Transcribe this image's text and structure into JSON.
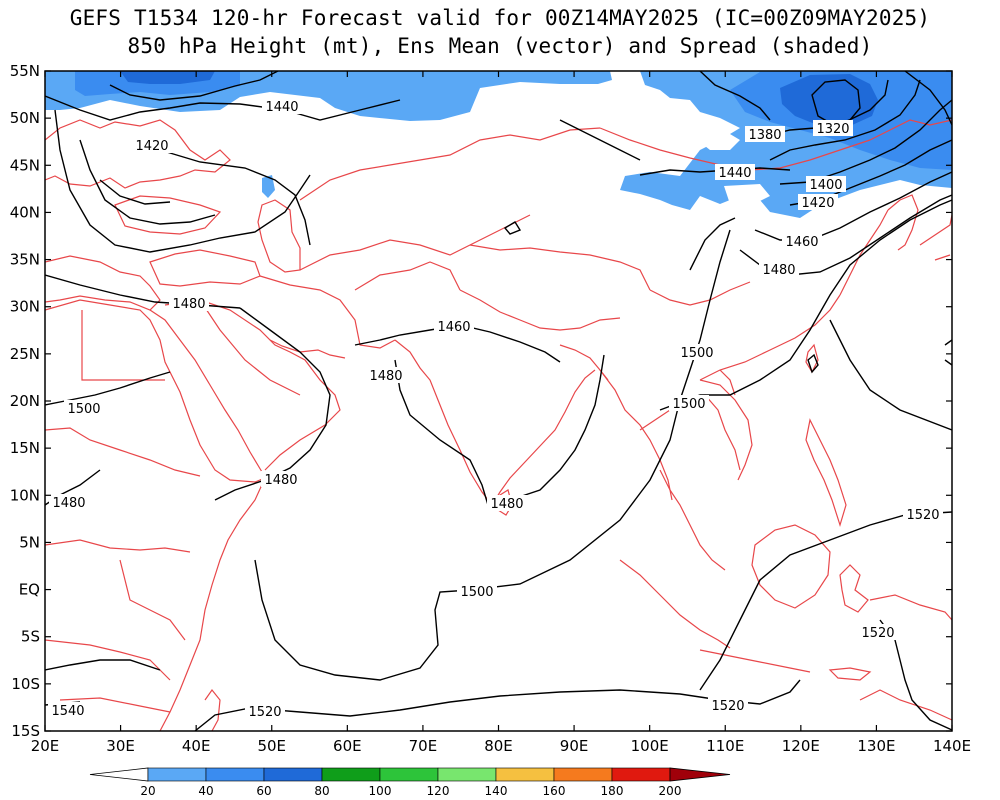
{
  "title": {
    "line1": "GEFS T1534 120-hr Forecast valid for 00Z14MAY2025 (IC=00Z09MAY2025)",
    "line2": "850 hPa Height (mt), Ens Mean (vector) and Spread (shaded)"
  },
  "map": {
    "lon_range": [
      20,
      140
    ],
    "lat_range": [
      -15,
      55
    ],
    "lon_ticks": [
      "20E",
      "30E",
      "40E",
      "50E",
      "60E",
      "70E",
      "80E",
      "90E",
      "100E",
      "110E",
      "120E",
      "130E",
      "140E"
    ],
    "lat_ticks": [
      "55N",
      "50N",
      "45N",
      "40N",
      "35N",
      "30N",
      "25N",
      "20N",
      "15N",
      "10N",
      "5N",
      "EQ",
      "5S",
      "10S",
      "15S"
    ],
    "coastline_color": "#e8474a",
    "contour_color": "#000000",
    "contour_labels": [
      {
        "id": "l1440a",
        "text": "1440"
      },
      {
        "id": "l1420a",
        "text": "1420"
      },
      {
        "id": "l1480a",
        "text": "1480"
      },
      {
        "id": "l1460a",
        "text": "1460"
      },
      {
        "id": "l1480b",
        "text": "1480"
      },
      {
        "id": "l1500a",
        "text": "1500"
      },
      {
        "id": "l1480c",
        "text": "1480"
      },
      {
        "id": "l1480d",
        "text": "1480"
      },
      {
        "id": "l1480e",
        "text": "1480"
      },
      {
        "id": "l1500b",
        "text": "1500"
      },
      {
        "id": "l1520a",
        "text": "1520"
      },
      {
        "id": "l1540a",
        "text": "1540"
      },
      {
        "id": "l1520b",
        "text": "1520"
      },
      {
        "id": "l1520c",
        "text": "1520"
      },
      {
        "id": "l1520d",
        "text": "1520"
      },
      {
        "id": "l1500c",
        "text": "1500"
      },
      {
        "id": "l1500d",
        "text": "1500"
      },
      {
        "id": "l1480f",
        "text": "1480"
      },
      {
        "id": "l1460b",
        "text": "1460"
      },
      {
        "id": "l1420b",
        "text": "1420"
      },
      {
        "id": "l1400a",
        "text": "1400"
      },
      {
        "id": "l1440b",
        "text": "1440"
      },
      {
        "id": "l1380a",
        "text": "1380"
      },
      {
        "id": "l1320a",
        "text": "1320"
      }
    ]
  },
  "colorbar": {
    "labels": [
      "20",
      "40",
      "60",
      "80",
      "100",
      "120",
      "140",
      "160",
      "180",
      "200"
    ],
    "colors": [
      "#5aa8f5",
      "#3a8cf0",
      "#1f6ad8",
      "#0f9e1a",
      "#2dc43a",
      "#78e66e",
      "#f5c040",
      "#f57a1e",
      "#e0190f",
      "#a0000a"
    ]
  },
  "shading": {
    "spread_20_40": "#5aa8f5",
    "spread_40_60": "#3a8cf0",
    "spread_60_80": "#1f6ad8"
  }
}
